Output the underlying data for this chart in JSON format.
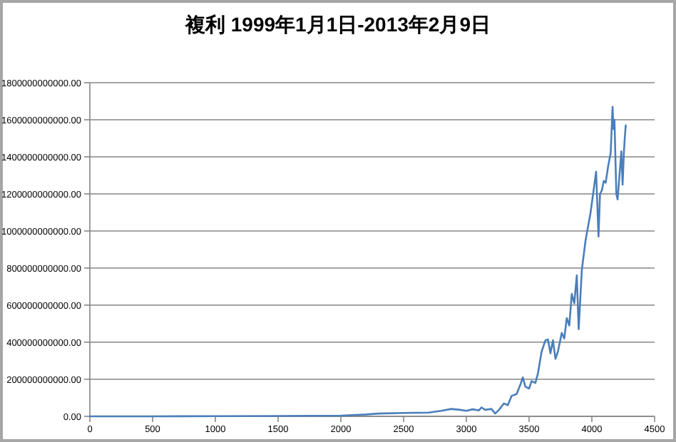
{
  "chart_data": {
    "type": "line",
    "title": "複利 1999年1月1日-2013年2月9日",
    "grid": "y",
    "marker": "none",
    "line_style": "solid",
    "xlim": [
      0,
      4500
    ],
    "xticks": [
      0,
      500,
      1000,
      1500,
      2000,
      2500,
      3000,
      3500,
      4000,
      4500
    ],
    "ylim": [
      0,
      1800000000000
    ],
    "yticks": [
      {
        "value": 0,
        "label": "0.00"
      },
      {
        "value": 200000000000,
        "label": "200000000000.00"
      },
      {
        "value": 400000000000,
        "label": "400000000000.00"
      },
      {
        "value": 600000000000,
        "label": "600000000000.00"
      },
      {
        "value": 800000000000,
        "label": "800000000000.00"
      },
      {
        "value": 1000000000000,
        "label": "1000000000000.00"
      },
      {
        "value": 1200000000000,
        "label": "1200000000000.00"
      },
      {
        "value": 1400000000000,
        "label": "1400000000000.00"
      },
      {
        "value": 1600000000000,
        "label": "1600000000000.00"
      },
      {
        "value": 1800000000000,
        "label": "1800000000000.00"
      }
    ],
    "series": [
      {
        "color": "#4a7ebb",
        "x": [
          0,
          500,
          1000,
          1500,
          2000,
          2200,
          2300,
          2500,
          2700,
          2800,
          2880,
          2950,
          3000,
          3050,
          3100,
          3120,
          3150,
          3200,
          3230,
          3260,
          3300,
          3330,
          3360,
          3400,
          3430,
          3450,
          3470,
          3500,
          3520,
          3550,
          3570,
          3600,
          3630,
          3650,
          3670,
          3690,
          3710,
          3730,
          3760,
          3780,
          3800,
          3820,
          3840,
          3860,
          3880,
          3895,
          3920,
          3950,
          3990,
          4010,
          4034,
          4053,
          4065,
          4080,
          4095,
          4110,
          4130,
          4150,
          4165,
          4172,
          4180,
          4195,
          4205,
          4220,
          4235,
          4245,
          4255,
          4262,
          4270
        ],
        "values": [
          0,
          0,
          1000000000,
          2000000000,
          4000000000,
          10000000000,
          15000000000,
          18000000000,
          20000000000,
          30000000000,
          40000000000,
          35000000000,
          30000000000,
          38000000000,
          32000000000,
          48000000000,
          35000000000,
          40000000000,
          15000000000,
          35000000000,
          70000000000,
          60000000000,
          110000000000,
          120000000000,
          170000000000,
          210000000000,
          160000000000,
          150000000000,
          190000000000,
          180000000000,
          230000000000,
          350000000000,
          410000000000,
          415000000000,
          340000000000,
          410000000000,
          310000000000,
          350000000000,
          450000000000,
          420000000000,
          530000000000,
          490000000000,
          660000000000,
          610000000000,
          760000000000,
          470000000000,
          790000000000,
          950000000000,
          1100000000000,
          1200000000000,
          1320000000000,
          970000000000,
          1200000000000,
          1220000000000,
          1270000000000,
          1260000000000,
          1350000000000,
          1420000000000,
          1670000000000,
          1550000000000,
          1600000000000,
          1200000000000,
          1170000000000,
          1300000000000,
          1430000000000,
          1250000000000,
          1420000000000,
          1500000000000,
          1570000000000
        ]
      }
    ]
  }
}
